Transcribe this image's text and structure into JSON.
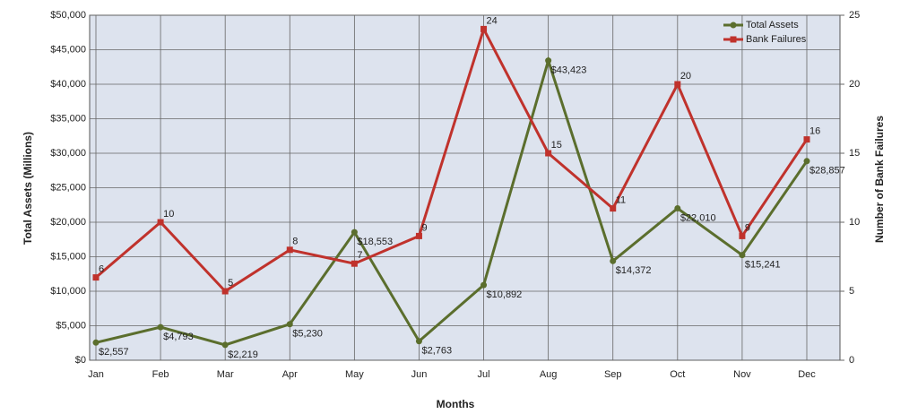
{
  "chart_data": {
    "type": "line",
    "x_label": "Months",
    "y_label": "Total Assets (Millions)",
    "y2_label": "Number of Bank Failures",
    "categories": [
      "Jan",
      "Feb",
      "Mar",
      "Apr",
      "May",
      "Jun",
      "Jul",
      "Aug",
      "Sep",
      "Oct",
      "Nov",
      "Dec"
    ],
    "series": [
      {
        "name": "Total Assets",
        "color": "#5b6e2d",
        "values": [
          2557,
          4793,
          2219,
          5230,
          18553,
          2763,
          10892,
          43423,
          14372,
          22010,
          15241,
          28857
        ],
        "value_labels": [
          "$2,557",
          "$4,793",
          "$2,219",
          "$5,230",
          "$18,553",
          "$2,763",
          "$10,892",
          "$43,423",
          "$14,372",
          "$22,010",
          "$15,241",
          "$28,857"
        ]
      },
      {
        "name": "Bank Failures",
        "color": "#c0322c",
        "axis": "y2",
        "values": [
          6,
          10,
          5,
          8,
          7,
          9,
          24,
          15,
          11,
          20,
          9,
          16
        ]
      }
    ],
    "ylim": [
      0,
      50000
    ],
    "yticks": [
      {
        "value": 0,
        "label": "$0"
      },
      {
        "value": 5000,
        "label": "$5,000"
      },
      {
        "value": 10000,
        "label": "$10,000"
      },
      {
        "value": 15000,
        "label": "$15,000"
      },
      {
        "value": 20000,
        "label": "$20,000"
      },
      {
        "value": 25000,
        "label": "$25,000"
      },
      {
        "value": 30000,
        "label": "$30,000"
      },
      {
        "value": 35000,
        "label": "$35,000"
      },
      {
        "value": 40000,
        "label": "$40,000"
      },
      {
        "value": 45000,
        "label": "$45,000"
      },
      {
        "value": 50000,
        "label": "$50,000"
      }
    ],
    "y2lim": [
      0,
      25
    ],
    "y2ticks": [
      0,
      5,
      10,
      15,
      20,
      25
    ],
    "grid": true,
    "legend": "upper right"
  }
}
